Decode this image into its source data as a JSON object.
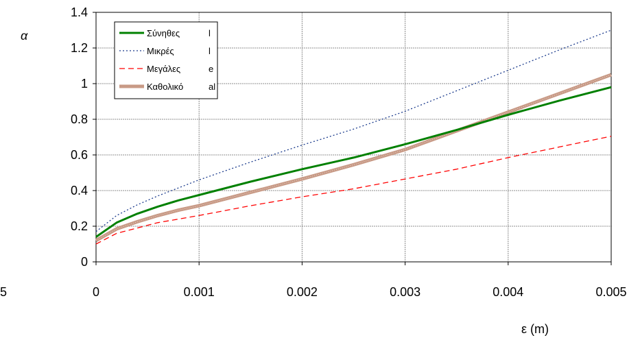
{
  "chart_data": {
    "type": "line",
    "title": "",
    "xlabel": "ε (m)",
    "ylabel": "α",
    "xlim": [
      0,
      0.005
    ],
    "ylim": [
      0,
      1.4
    ],
    "x_ticks": [
      "0",
      "0.001",
      "0.002",
      "0.003",
      "0.004",
      "0.005"
    ],
    "y_ticks": [
      "0",
      "0.2",
      "0.4",
      "0.6",
      "0.8",
      "1",
      "1.2",
      "1.4"
    ],
    "left_partial_label": "5",
    "grid": true,
    "legend_placement": "top-left",
    "series": [
      {
        "name": "Σύνηθες",
        "legend_suffix": "l",
        "color": "#008000",
        "style": "solid",
        "x": [
          0,
          0.0002,
          0.0004,
          0.0006,
          0.0008,
          0.001,
          0.0015,
          0.002,
          0.0025,
          0.003,
          0.0035,
          0.004,
          0.0045,
          0.005
        ],
        "y": [
          0.14,
          0.22,
          0.27,
          0.31,
          0.345,
          0.375,
          0.45,
          0.52,
          0.585,
          0.66,
          0.74,
          0.825,
          0.905,
          0.98
        ]
      },
      {
        "name": "Μικρές",
        "legend_suffix": "l",
        "color": "#1a3a8c",
        "style": "dotted",
        "x": [
          0,
          0.0002,
          0.0004,
          0.0006,
          0.0008,
          0.001,
          0.0015,
          0.002,
          0.0025,
          0.003,
          0.0035,
          0.004,
          0.0045,
          0.005
        ],
        "y": [
          0.17,
          0.26,
          0.32,
          0.37,
          0.415,
          0.46,
          0.56,
          0.655,
          0.745,
          0.845,
          0.96,
          1.075,
          1.19,
          1.3
        ]
      },
      {
        "name": "Μεγάλες",
        "legend_suffix": "e",
        "color": "#ff0000",
        "style": "dashed",
        "x": [
          0,
          0.0002,
          0.0004,
          0.0006,
          0.0008,
          0.001,
          0.0015,
          0.002,
          0.0025,
          0.003,
          0.0035,
          0.004,
          0.0045,
          0.005
        ],
        "y": [
          0.1,
          0.16,
          0.19,
          0.22,
          0.24,
          0.26,
          0.315,
          0.365,
          0.41,
          0.465,
          0.52,
          0.585,
          0.645,
          0.705
        ]
      },
      {
        "name": "Καθολικό",
        "legend_suffix": "al",
        "color": "#c89a86",
        "style": "thick",
        "x": [
          0,
          0.0002,
          0.0004,
          0.0006,
          0.0008,
          0.001,
          0.0015,
          0.002,
          0.0025,
          0.003,
          0.0035,
          0.004,
          0.0045,
          0.005
        ],
        "y": [
          0.12,
          0.185,
          0.225,
          0.26,
          0.29,
          0.315,
          0.39,
          0.465,
          0.545,
          0.63,
          0.735,
          0.84,
          0.945,
          1.05
        ]
      }
    ]
  }
}
